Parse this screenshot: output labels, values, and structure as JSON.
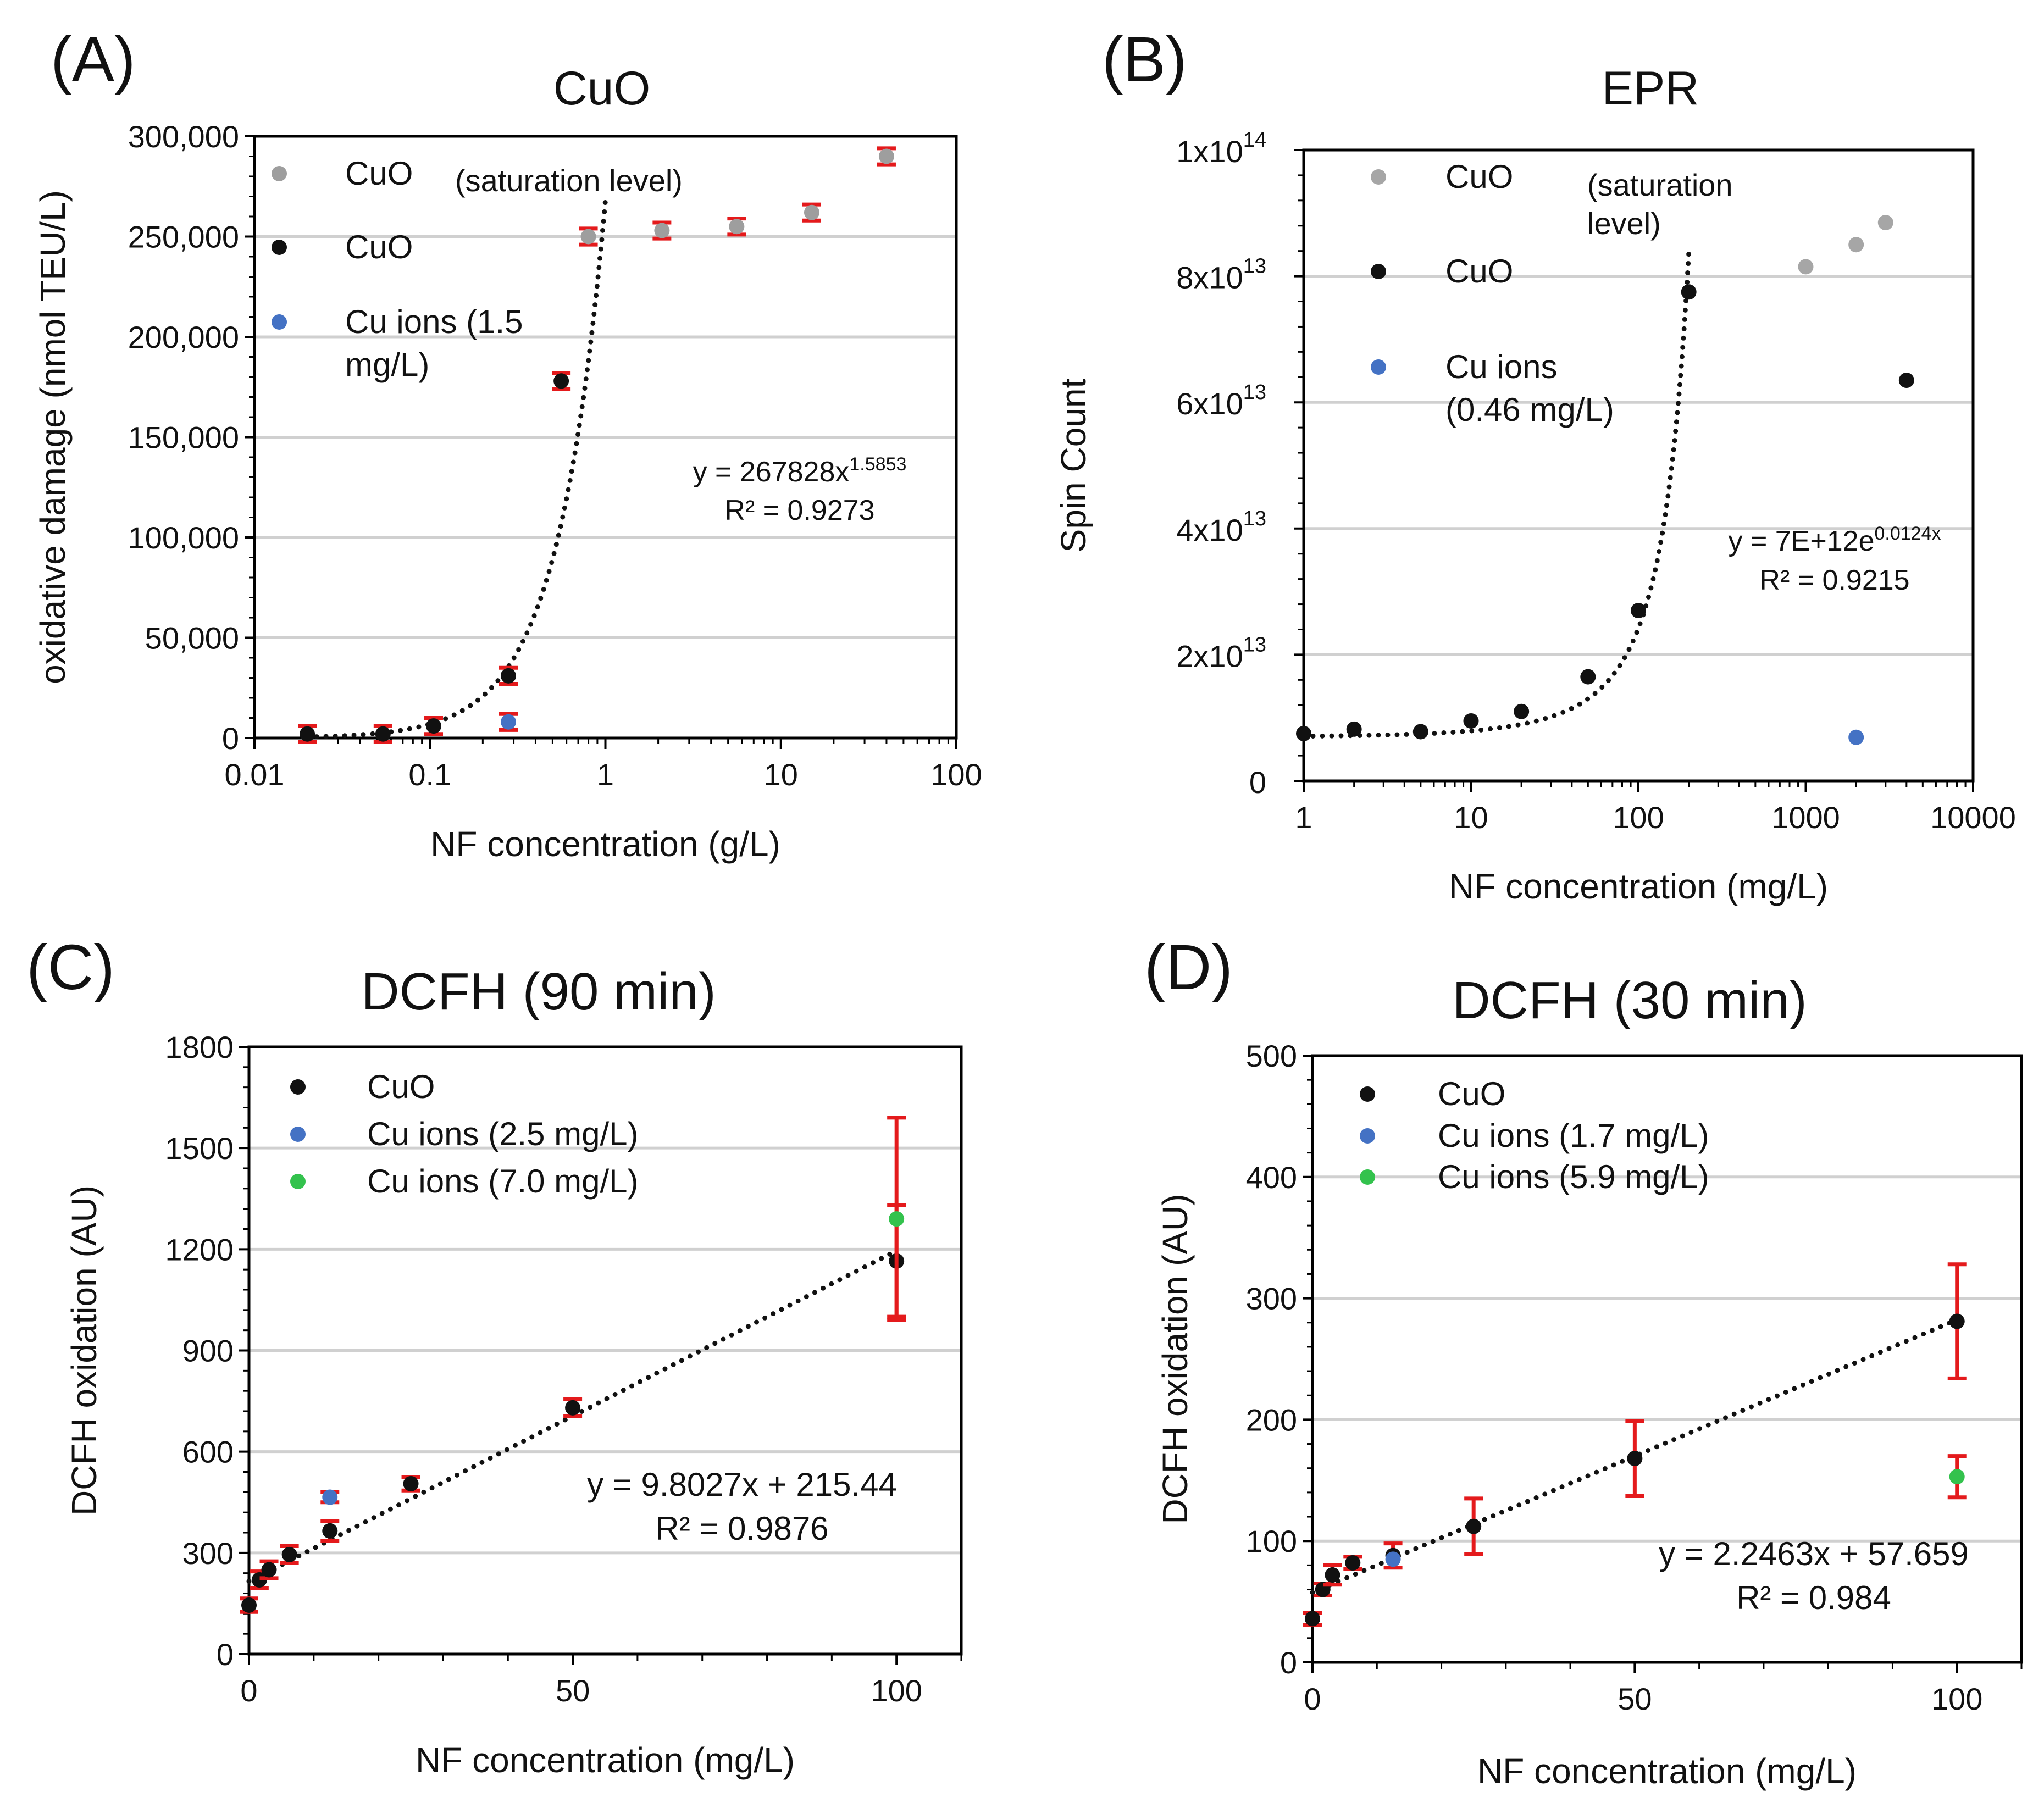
{
  "chart_data": [
    {
      "type": "scatter",
      "panel_label": "(A)",
      "title": "CuO",
      "xlabel": "NF concentration (g/L)",
      "ylabel": "oxidative damage (nmol TEU/L)",
      "xscale": "log",
      "xlim": [
        0.01,
        100
      ],
      "ylim": [
        0,
        300000
      ],
      "x_ticks": [
        0.01,
        0.1,
        1,
        10,
        100
      ],
      "x_tick_labels": [
        "0.01",
        "0.1",
        "1",
        "10",
        "100"
      ],
      "y_ticks": [
        0,
        50000,
        100000,
        150000,
        200000,
        250000,
        300000
      ],
      "y_tick_labels": [
        "0",
        "50,000",
        "100,000",
        "150,000",
        "200,000",
        "250,000",
        "300,000"
      ],
      "legend_position": "top-left",
      "legend_note": "(saturation level)",
      "series": [
        {
          "name": "CuO",
          "color": "#9e9e9e",
          "error_bars": true,
          "err": 4000,
          "x": [
            0.8,
            2.1,
            5.6,
            15,
            40
          ],
          "y": [
            250000,
            253000,
            255000,
            262000,
            290000
          ]
        },
        {
          "name": "CuO",
          "color": "#111111",
          "error_bars": true,
          "err": 4000,
          "x": [
            0.02,
            0.054,
            0.105,
            0.28,
            0.56
          ],
          "y": [
            2000,
            2000,
            6000,
            31000,
            178000
          ]
        },
        {
          "name": "Cu ions (1.5 mg/L)",
          "name_lines": [
            "Cu ions (1.5",
            "mg/L)"
          ],
          "color": "#4472c4",
          "error_bars": true,
          "err": 4000,
          "x": [
            0.28
          ],
          "y": [
            8000
          ]
        }
      ],
      "trendline": {
        "kind": "power",
        "a": 267828,
        "b": 1.5853,
        "x_range": [
          0.02,
          1.0
        ]
      },
      "annotation": {
        "equation_base": "y = 267828x",
        "equation_exp": "1.5853",
        "r2": "R² = 0.9273"
      }
    },
    {
      "type": "scatter",
      "panel_label": "(B)",
      "title": "EPR",
      "xlabel": "NF concentration (mg/L)",
      "ylabel": "Spin Count",
      "xscale": "log",
      "xlim": [
        1,
        10000
      ],
      "ylim": [
        0,
        100000000000000
      ],
      "x_ticks": [
        1,
        10,
        100,
        1000,
        10000
      ],
      "x_tick_labels": [
        "1",
        "10",
        "100",
        "1000",
        "10000"
      ],
      "y_ticks": [
        0,
        20000000000000,
        40000000000000,
        60000000000000,
        80000000000000,
        100000000000000
      ],
      "y_tick_labels": [
        {
          "base": "0",
          "exp": ""
        },
        {
          "base": "2x10",
          "exp": "13"
        },
        {
          "base": "4x10",
          "exp": "13"
        },
        {
          "base": "6x10",
          "exp": "13"
        },
        {
          "base": "8x10",
          "exp": "13"
        },
        {
          "base": "1x10",
          "exp": "14"
        }
      ],
      "legend_position": "top-left",
      "legend_note": "(saturation level)",
      "legend_note_lines": [
        "(saturation",
        "level)"
      ],
      "series": [
        {
          "name": "CuO",
          "color": "#a6a6a6",
          "error_bars": false,
          "x": [
            1000,
            2000,
            3000
          ],
          "y": [
            81500000000000,
            85000000000000,
            88500000000000
          ]
        },
        {
          "name": "CuO",
          "color": "#111111",
          "error_bars": false,
          "x": [
            1,
            2,
            5,
            10,
            20,
            50,
            100,
            200,
            4000
          ],
          "y": [
            7500000000000,
            8200000000000,
            7800000000000,
            9500000000000,
            11000000000000,
            16500000000000,
            27000000000000,
            77500000000000,
            63500000000000
          ]
        },
        {
          "name": "Cu ions (0.46 mg/L)",
          "name_lines": [
            "Cu ions",
            "(0.46 mg/L)"
          ],
          "color": "#4472c4",
          "error_bars": false,
          "x": [
            2000
          ],
          "y": [
            6900000000000
          ]
        }
      ],
      "trendline": {
        "kind": "exp",
        "a": 7000000000000,
        "b": 0.0124,
        "x_range": [
          1,
          200
        ]
      },
      "annotation": {
        "equation_base": "y = 7E+12e",
        "equation_exp": "0.0124x",
        "r2": "R² = 0.9215"
      }
    },
    {
      "type": "scatter",
      "panel_label": "(C)",
      "title": "DCFH (90 min)",
      "xlabel": "NF concentration (mg/L)",
      "ylabel": "DCFH oxidation (AU)",
      "xscale": "linear",
      "xlim": [
        0,
        110
      ],
      "ylim": [
        0,
        1800
      ],
      "x_ticks": [
        0,
        50,
        100
      ],
      "x_tick_labels": [
        "0",
        "50",
        "100"
      ],
      "y_ticks": [
        0,
        300,
        600,
        900,
        1200,
        1500,
        1800
      ],
      "y_tick_labels": [
        "0",
        "300",
        "600",
        "900",
        "1200",
        "1500",
        "1800"
      ],
      "legend_position": "top-left",
      "series": [
        {
          "name": "CuO",
          "color": "#111111",
          "error_bars": true,
          "x": [
            0,
            1.6,
            3.1,
            6.25,
            12.5,
            25,
            50,
            100
          ],
          "y": [
            145,
            220,
            250,
            295,
            365,
            505,
            730,
            1165
          ],
          "err": [
            20,
            25,
            25,
            25,
            30,
            20,
            25,
            165
          ]
        },
        {
          "name": "Cu ions (2.5 mg/L)",
          "color": "#4472c4",
          "error_bars": true,
          "x": [
            12.5
          ],
          "y": [
            465
          ],
          "err": [
            15
          ]
        },
        {
          "name": "Cu ions (7.0 mg/L)",
          "color": "#33c24d",
          "error_bars": true,
          "x": [
            100
          ],
          "y": [
            1290
          ],
          "err": [
            300
          ]
        }
      ],
      "trendline": {
        "kind": "linear",
        "a": 9.8027,
        "b": 215.44,
        "x_range": [
          0,
          100
        ]
      },
      "annotation": {
        "equation": "y = 9.8027x + 215.44",
        "r2": "R² = 0.9876"
      }
    },
    {
      "type": "scatter",
      "panel_label": "(D)",
      "title": "DCFH (30 min)",
      "xlabel": "NF concentration (mg/L)",
      "ylabel": "DCFH oxidation (AU)",
      "xscale": "linear",
      "xlim": [
        0,
        110
      ],
      "ylim": [
        0,
        500
      ],
      "x_ticks": [
        0,
        50,
        100
      ],
      "x_tick_labels": [
        "0",
        "50",
        "100"
      ],
      "y_ticks": [
        0,
        100,
        200,
        300,
        400,
        500
      ],
      "y_tick_labels": [
        "0",
        "100",
        "200",
        "300",
        "400",
        "500"
      ],
      "legend_position": "top-left",
      "series": [
        {
          "name": "CuO",
          "color": "#111111",
          "error_bars": true,
          "x": [
            0,
            1.6,
            3.1,
            6.25,
            12.5,
            25,
            50,
            100
          ],
          "y": [
            36,
            60,
            72,
            82,
            88,
            112,
            168,
            281
          ],
          "err": [
            5,
            5,
            8,
            5,
            10,
            23,
            31,
            47
          ]
        },
        {
          "name": "Cu ions (1.7 mg/L)",
          "color": "#4472c4",
          "error_bars": false,
          "x": [
            12.5
          ],
          "y": [
            85
          ],
          "err": [
            0
          ]
        },
        {
          "name": "Cu ions (5.9 mg/L)",
          "color": "#33c24d",
          "error_bars": true,
          "x": [
            100
          ],
          "y": [
            153
          ],
          "err": [
            17
          ]
        }
      ],
      "trendline": {
        "kind": "linear",
        "a": 2.2463,
        "b": 57.659,
        "x_range": [
          0,
          100
        ]
      },
      "annotation": {
        "equation": "y = 2.2463x + 57.659",
        "r2": "R² = 0.984"
      }
    }
  ]
}
